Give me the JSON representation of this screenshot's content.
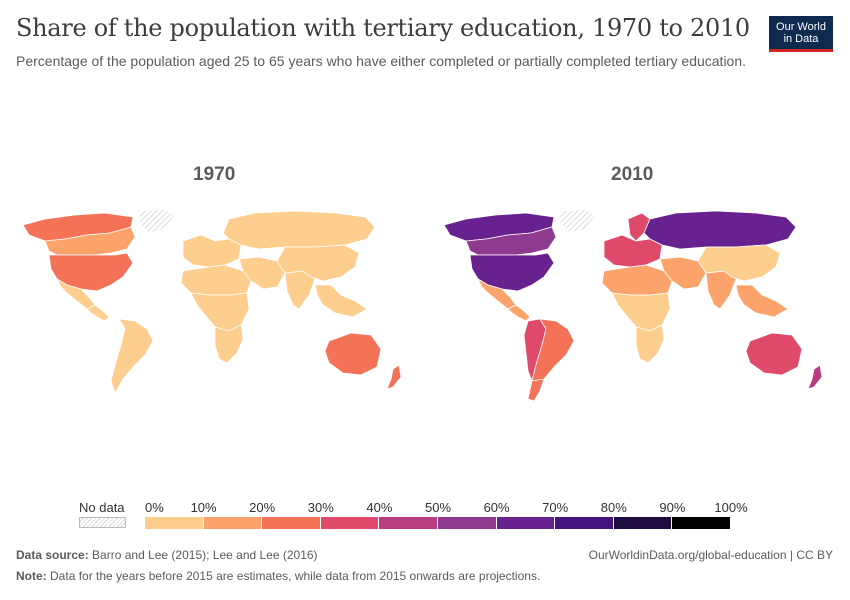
{
  "header": {
    "title": "Share of the population with tertiary education, 1970 to 2010",
    "subtitle": "Percentage of the population aged 25 to 65 years who have either completed or partially completed tertiary education.",
    "logo_line1": "Our World",
    "logo_line2": "in Data"
  },
  "maps": [
    {
      "label": "1970",
      "regions": {
        "north_america_north": 0.2,
        "canada": 0.15,
        "usa": 0.27,
        "mexico": 0.05,
        "central_america": 0.05,
        "south_america": 0.05,
        "europe": 0.05,
        "russia": 0.05,
        "middle_east": 0.05,
        "africa_north": 0.05,
        "africa_central": 0.05,
        "africa_south": 0.05,
        "india": 0.05,
        "china": 0.05,
        "southeast_asia": 0.05,
        "australia": 0.25,
        "new_zealand": 0.2,
        "greenland": null
      }
    },
    {
      "label": "2010",
      "regions": {
        "north_america_north": 0.65,
        "canada": 0.55,
        "usa": 0.65,
        "mexico": 0.15,
        "central_america": 0.15,
        "south_america": 0.2,
        "south_america_west": 0.35,
        "argentina": 0.25,
        "europe": 0.3,
        "scandinavia": 0.35,
        "russia": 0.6,
        "middle_east": 0.15,
        "africa_north": 0.1,
        "africa_central": 0.05,
        "africa_south": 0.05,
        "india": 0.1,
        "china": 0.05,
        "southeast_asia": 0.15,
        "australia": 0.35,
        "new_zealand": 0.4,
        "greenland": null
      }
    }
  ],
  "legend": {
    "nodata_label": "No data",
    "ticks": [
      "0%",
      "10%",
      "20%",
      "30%",
      "40%",
      "50%",
      "60%",
      "70%",
      "80%",
      "90%",
      "100%"
    ],
    "colors": [
      "#fdce8e",
      "#fca36c",
      "#f47358",
      "#df4a6b",
      "#b93e80",
      "#8e3a8f",
      "#68228f",
      "#44157e",
      "#1e0b3f",
      "#000000"
    ],
    "nodata_color": "#e6e6e6"
  },
  "footer": {
    "source_label": "Data source:",
    "source_text": "Barro and Lee (2015); Lee and Lee (2016)",
    "url_text": "OurWorldinData.org/global-education | CC BY",
    "note_label": "Note:",
    "note_text": "Data for the years before 2015 are estimates, while data from 2015 onwards are projections."
  }
}
